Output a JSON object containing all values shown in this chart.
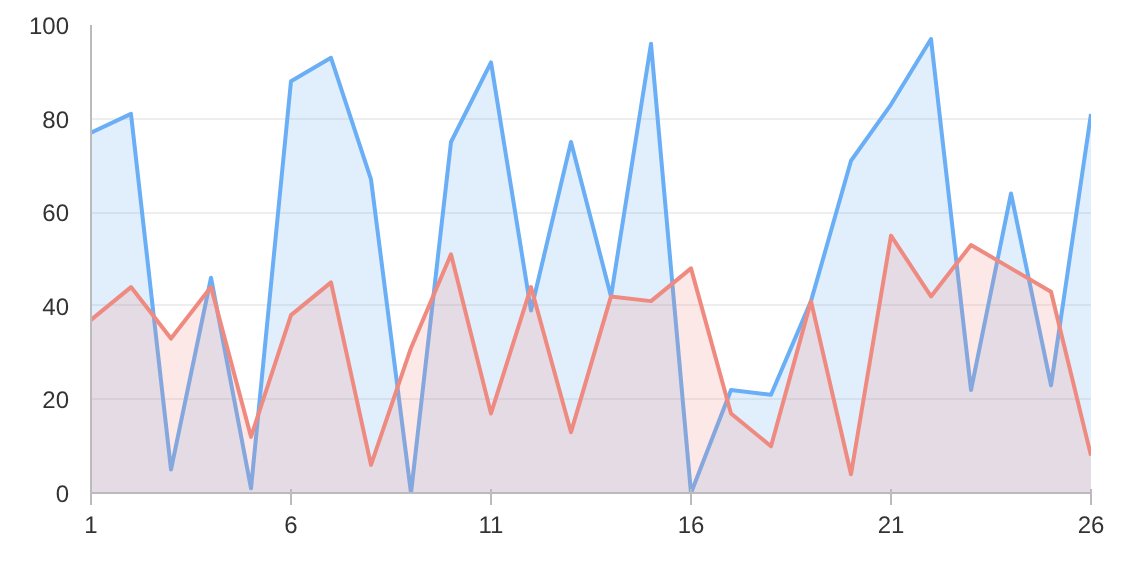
{
  "chart_data": {
    "type": "area",
    "x": [
      1,
      2,
      3,
      4,
      5,
      6,
      7,
      8,
      9,
      10,
      11,
      12,
      13,
      14,
      15,
      16,
      17,
      18,
      19,
      20,
      21,
      22,
      23,
      24,
      25,
      26
    ],
    "series": [
      {
        "color": "#6aaef5",
        "values": [
          77,
          81,
          5,
          46,
          1,
          88,
          93,
          67,
          0,
          75,
          92,
          39,
          75,
          42,
          96,
          0,
          22,
          21,
          41,
          71,
          83,
          97,
          22,
          64,
          23,
          81
        ]
      },
      {
        "color": "#ef8a80",
        "values": [
          37,
          44,
          33,
          44,
          12,
          38,
          45,
          6,
          31,
          51,
          17,
          44,
          13,
          42,
          41,
          48,
          17,
          10,
          41,
          4,
          55,
          42,
          53,
          48,
          43,
          8
        ]
      }
    ],
    "xlim": [
      1,
      26
    ],
    "xticks": [
      1,
      6,
      11,
      16,
      21,
      26
    ],
    "ylim": [
      0,
      100
    ],
    "yticks": [
      0,
      20,
      40,
      60,
      80,
      100
    ],
    "grid": "y"
  }
}
